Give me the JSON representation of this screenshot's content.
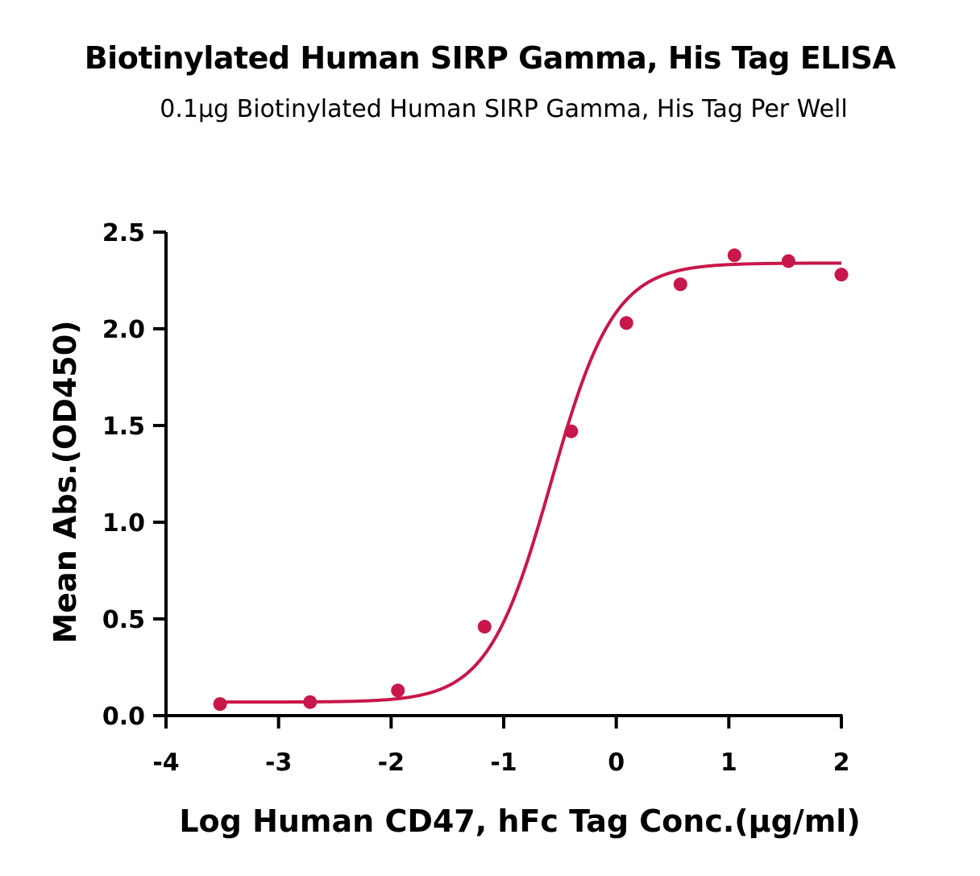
{
  "chart_data": {
    "type": "scatter",
    "title": "Biotinylated Human SIRP Gamma, His Tag ELISA",
    "subtitle": "0.1µg Biotinylated Human SIRP Gamma, His Tag Per Well",
    "xlabel": "Log Human CD47, hFc Tag Conc.(µg/ml)",
    "ylabel": "Mean Abs.(OD450)",
    "xlim": [
      -4,
      2
    ],
    "ylim": [
      0,
      2.5
    ],
    "x_ticks": [
      -4,
      -3,
      -2,
      -1,
      0,
      1,
      2
    ],
    "x_tick_labels": [
      "-4",
      "-3",
      "-2",
      "-1",
      "0",
      "1",
      "2"
    ],
    "y_ticks": [
      0,
      0.5,
      1.0,
      1.5,
      2.0,
      2.5
    ],
    "y_tick_labels": [
      "0.0",
      "0.5",
      "1.0",
      "1.5",
      "2.0",
      "2.5"
    ],
    "grid": false,
    "series": [
      {
        "color": "#c8174a",
        "x": [
          -3.52,
          -2.72,
          -1.94,
          -1.17,
          -0.4,
          0.09,
          0.57,
          1.05,
          1.53,
          2.0
        ],
        "y": [
          0.06,
          0.07,
          0.13,
          0.46,
          1.47,
          2.03,
          2.23,
          2.38,
          2.35,
          2.28
        ]
      }
    ],
    "fit_curve": {
      "model": "4PL",
      "bottom": 0.07,
      "top": 2.34,
      "log_ec50": -0.58,
      "hill": 1.55,
      "x_range": [
        -3.52,
        2.0
      ]
    }
  }
}
